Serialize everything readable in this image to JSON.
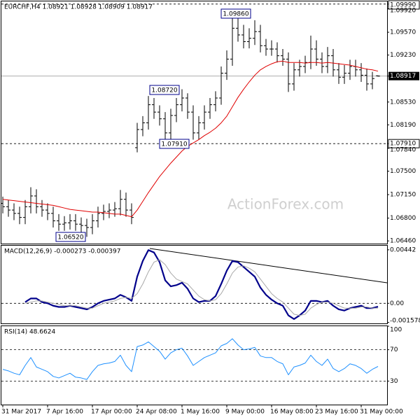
{
  "chart_data": [
    {
      "type": "ohlc",
      "title": "EURCHF,H4  1.08921 1.08928 1.08909 1.08917",
      "watermark": "ActionForex.com",
      "color": "#000000",
      "categories": [
        "31 Mar 2017",
        null,
        null,
        null,
        null,
        null,
        null,
        null,
        "7 Apr 16:00",
        null,
        null,
        null,
        null,
        null,
        null,
        null,
        "17 Apr 00:00",
        null,
        null,
        null,
        null,
        null,
        null,
        null,
        "24 Apr 08:00",
        null,
        null,
        null,
        null,
        null,
        null,
        null,
        "1 May 16:00",
        null,
        null,
        null,
        null,
        null,
        null,
        null,
        "9 May 00:00",
        null,
        null,
        null,
        null,
        null,
        null,
        null,
        "16 May 08:00",
        null,
        null,
        null,
        null,
        null,
        null,
        null,
        "23 May 16:00",
        null,
        null,
        null,
        null,
        null,
        null,
        null,
        "31 May 00:00",
        null,
        null,
        null
      ],
      "open": [
        1.0702,
        1.0697,
        1.0692,
        1.0687,
        1.0681,
        1.0697,
        1.0713,
        1.0697,
        1.0692,
        1.0687,
        1.0676,
        1.0671,
        1.0673,
        1.0676,
        1.0671,
        1.0669,
        1.0666,
        1.0676,
        1.0687,
        1.069,
        1.0692,
        1.0694,
        1.0708,
        1.0692,
        1.0785,
        1.0812,
        1.0822,
        1.0849,
        1.0838,
        1.0828,
        1.0807,
        1.0833,
        1.0849,
        1.0859,
        1.0838,
        1.0807,
        1.0822,
        1.0838,
        1.0849,
        1.0859,
        1.0896,
        1.0917,
        1.0963,
        1.0953,
        1.0943,
        1.0948,
        1.0958,
        1.0937,
        1.0932,
        1.0932,
        1.0922,
        1.0917,
        1.088,
        1.0901,
        1.0906,
        1.0912,
        1.0932,
        1.0917,
        1.0906,
        1.0922,
        1.0901,
        1.089,
        1.0896,
        1.0906,
        1.0901,
        1.0893,
        1.088,
        1.08921
      ],
      "high": [
        1.0712,
        1.0707,
        1.0702,
        1.0697,
        1.0707,
        1.0726,
        1.0723,
        1.0707,
        1.0702,
        1.0697,
        1.0686,
        1.0683,
        1.0686,
        1.0686,
        1.0681,
        1.0679,
        1.0686,
        1.0697,
        1.07,
        1.0702,
        1.0704,
        1.0722,
        1.0718,
        1.0702,
        1.0822,
        1.0832,
        1.0862,
        1.0859,
        1.0848,
        1.0838,
        1.0843,
        1.0859,
        1.0872,
        1.0866,
        1.0848,
        1.0832,
        1.0848,
        1.0859,
        1.0869,
        1.0906,
        1.093,
        1.0986,
        1.0978,
        1.0968,
        1.0963,
        1.0975,
        1.0968,
        1.0947,
        1.0945,
        1.0942,
        1.0932,
        1.0927,
        1.0911,
        1.0916,
        1.0922,
        1.0952,
        1.0945,
        1.0927,
        1.0935,
        1.0932,
        1.0911,
        1.0908,
        1.0916,
        1.0916,
        1.0911,
        1.0903,
        1.0898,
        1.08928
      ],
      "low": [
        1.0687,
        1.0682,
        1.0677,
        1.0671,
        1.0671,
        1.0687,
        1.0687,
        1.0682,
        1.0677,
        1.0666,
        1.0661,
        1.0661,
        1.0663,
        1.0661,
        1.0659,
        1.0652,
        1.0656,
        1.0666,
        1.0677,
        1.068,
        1.0682,
        1.0684,
        1.0682,
        1.0671,
        1.0778,
        1.0802,
        1.0812,
        1.0828,
        1.0818,
        1.0791,
        1.0797,
        1.0823,
        1.0839,
        1.0828,
        1.0797,
        1.0797,
        1.0812,
        1.0828,
        1.0839,
        1.0849,
        1.0886,
        1.0907,
        1.0943,
        1.0933,
        1.0933,
        1.0938,
        1.0927,
        1.0922,
        1.0922,
        1.0912,
        1.0907,
        1.0868,
        1.087,
        1.0891,
        1.0896,
        1.0902,
        1.0907,
        1.0896,
        1.0896,
        1.0891,
        1.088,
        1.088,
        1.0886,
        1.0891,
        1.0883,
        1.087,
        1.0872,
        1.08909
      ],
      "close": [
        1.0697,
        1.0692,
        1.0687,
        1.0681,
        1.0697,
        1.0713,
        1.0697,
        1.0692,
        1.0687,
        1.0676,
        1.0671,
        1.0673,
        1.0676,
        1.0671,
        1.0669,
        1.0666,
        1.0676,
        1.0687,
        1.069,
        1.0692,
        1.0694,
        1.0708,
        1.0692,
        1.0681,
        1.0812,
        1.0822,
        1.0849,
        1.0838,
        1.0828,
        1.0807,
        1.0833,
        1.0849,
        1.0859,
        1.0838,
        1.0807,
        1.0822,
        1.0838,
        1.0849,
        1.0859,
        1.0896,
        1.0917,
        1.0963,
        1.0953,
        1.0943,
        1.0948,
        1.0958,
        1.0937,
        1.0932,
        1.0932,
        1.0922,
        1.0917,
        1.088,
        1.0901,
        1.0906,
        1.0912,
        1.0932,
        1.0917,
        1.0906,
        1.0922,
        1.0901,
        1.089,
        1.0896,
        1.0906,
        1.0901,
        1.0893,
        1.088,
        1.0888,
        1.08917
      ],
      "ma": {
        "color": "#e00000",
        "values": [
          1.0708,
          1.0707,
          1.0706,
          1.0705,
          1.0704,
          1.0703,
          1.0702,
          1.0701,
          1.07,
          1.0699,
          1.0697,
          1.0695,
          1.0693,
          1.0692,
          1.0691,
          1.069,
          1.0689,
          1.0689,
          1.0688,
          1.0687,
          1.0686,
          1.0686,
          1.0684,
          1.0682,
          1.0692,
          1.0705,
          1.0718,
          1.073,
          1.0742,
          1.0752,
          1.0762,
          1.0771,
          1.078,
          1.0787,
          1.0792,
          1.0797,
          1.0803,
          1.0808,
          1.0814,
          1.0822,
          1.0832,
          1.0846,
          1.086,
          1.0872,
          1.0883,
          1.0893,
          1.0901,
          1.0906,
          1.091,
          1.0913,
          1.0914,
          1.0912,
          1.0912,
          1.0912,
          1.0911,
          1.0912,
          1.0912,
          1.0911,
          1.0912,
          1.0911,
          1.091,
          1.0909,
          1.0908,
          1.0906,
          1.0904,
          1.0902,
          1.0901,
          1.0899
        ]
      },
      "annotations": [
        "1.09860",
        "1.08720",
        "1.07910",
        "1.06520"
      ],
      "ylim": [
        1.0642,
        1.1003
      ],
      "yticks": [
        {
          "value": 1.0999,
          "label": "1.09990"
        },
        {
          "value": 1.0992,
          "label": "1.09920"
        },
        {
          "value": 1.0957,
          "label": "1.09570"
        },
        {
          "value": 1.0923,
          "label": "1.09230"
        },
        1.08917,
        {
          "value": 1.0853,
          "label": "1.08530"
        },
        {
          "value": 1.0819,
          "label": "1.08190"
        },
        {
          "value": 1.0791,
          "label": "1.07910"
        },
        {
          "value": 1.0784,
          "label": "1.07840"
        },
        {
          "value": 1.075,
          "label": "1.07500"
        },
        {
          "value": 1.0715,
          "label": "1.07150"
        },
        {
          "value": 1.068,
          "label": "1.06800"
        },
        {
          "value": 1.0646,
          "label": "1.06460"
        }
      ],
      "hlines": [
        1.0999,
        1.0791
      ],
      "current_price": 1.08917
    },
    {
      "type": "line",
      "title": "MACD(12,26,9) -0.000273 -0.000397",
      "series": [
        {
          "color": "#00008b",
          "width": 2.2,
          "values": [
            null,
            null,
            null,
            null,
            0.0001,
            0.0004,
            0.0004,
            0.0001,
            0.0,
            -0.0002,
            -0.0003,
            -0.0003,
            -0.0002,
            -0.0003,
            -0.0004,
            -0.0005,
            -0.0003,
            0.0,
            0.0002,
            0.0003,
            0.0004,
            0.0007,
            0.0005,
            0.0002,
            0.0022,
            0.0035,
            0.0044,
            0.0042,
            0.0034,
            0.0019,
            0.0014,
            0.0015,
            0.0017,
            0.0012,
            0.0004,
            0.0001,
            0.0002,
            0.0002,
            0.0006,
            0.0016,
            0.0027,
            0.0035,
            0.0034,
            0.003,
            0.0026,
            0.0022,
            0.0013,
            0.0007,
            0.0003,
            0.0,
            -0.0002,
            -0.001,
            -0.0013,
            -0.001,
            -0.0006,
            0.0002,
            0.0002,
            0.0001,
            0.0002,
            -0.0002,
            -0.0005,
            -0.0006,
            -0.0004,
            -0.0003,
            -0.0002,
            -0.0004,
            -0.0004,
            -0.000273
          ]
        },
        {
          "color": "#a8a8a8",
          "width": 1,
          "values": [
            null,
            null,
            null,
            null,
            0.0,
            0.0001,
            0.0002,
            0.0002,
            0.0001,
            0.0,
            -0.0001,
            -0.0002,
            -0.0002,
            -0.0002,
            -0.0003,
            -0.0004,
            -0.0004,
            -0.0002,
            0.0,
            0.0001,
            0.0002,
            0.0004,
            0.0005,
            0.0004,
            0.0008,
            0.0016,
            0.0026,
            0.0034,
            0.0036,
            0.0032,
            0.0025,
            0.002,
            0.0018,
            0.0016,
            0.0011,
            0.0006,
            0.0003,
            0.0002,
            0.0003,
            0.0008,
            0.0016,
            0.0025,
            0.003,
            0.0031,
            0.0029,
            0.0026,
            0.002,
            0.0014,
            0.0008,
            0.0004,
            0.0001,
            -0.0004,
            -0.0009,
            -0.001,
            -0.0009,
            -0.0004,
            -0.0001,
            0.0001,
            0.0001,
            0.0,
            -0.0002,
            -0.0004,
            -0.0004,
            -0.0004,
            -0.0003,
            -0.0003,
            -0.0004,
            -0.000397
          ]
        }
      ],
      "ylim": [
        -0.00166,
        0.00476
      ],
      "yticks": [
        0.00442,
        {
          "value": 0,
          "label": "0.00"
        },
        -0.001578
      ],
      "hlines": [
        0
      ]
    },
    {
      "type": "line",
      "title": "RSI(14) 48.6624",
      "series": [
        {
          "color": "#1e90ff",
          "width": 1,
          "values": [
            45,
            43,
            40,
            38,
            50,
            60,
            48,
            45,
            42,
            36,
            34,
            37,
            40,
            35,
            34,
            32,
            42,
            50,
            52,
            53,
            55,
            63,
            50,
            42,
            74,
            76,
            80,
            74,
            68,
            58,
            66,
            70,
            72,
            62,
            50,
            55,
            60,
            63,
            66,
            75,
            78,
            84,
            76,
            70,
            71,
            73,
            62,
            60,
            60,
            55,
            52,
            38,
            48,
            50,
            53,
            63,
            55,
            50,
            58,
            46,
            42,
            46,
            52,
            50,
            46,
            40,
            45,
            48.6624
          ]
        }
      ],
      "ylim": [
        0,
        100
      ],
      "yticks": [
        100,
        70,
        30
      ],
      "hlines": [
        70,
        30
      ]
    }
  ]
}
